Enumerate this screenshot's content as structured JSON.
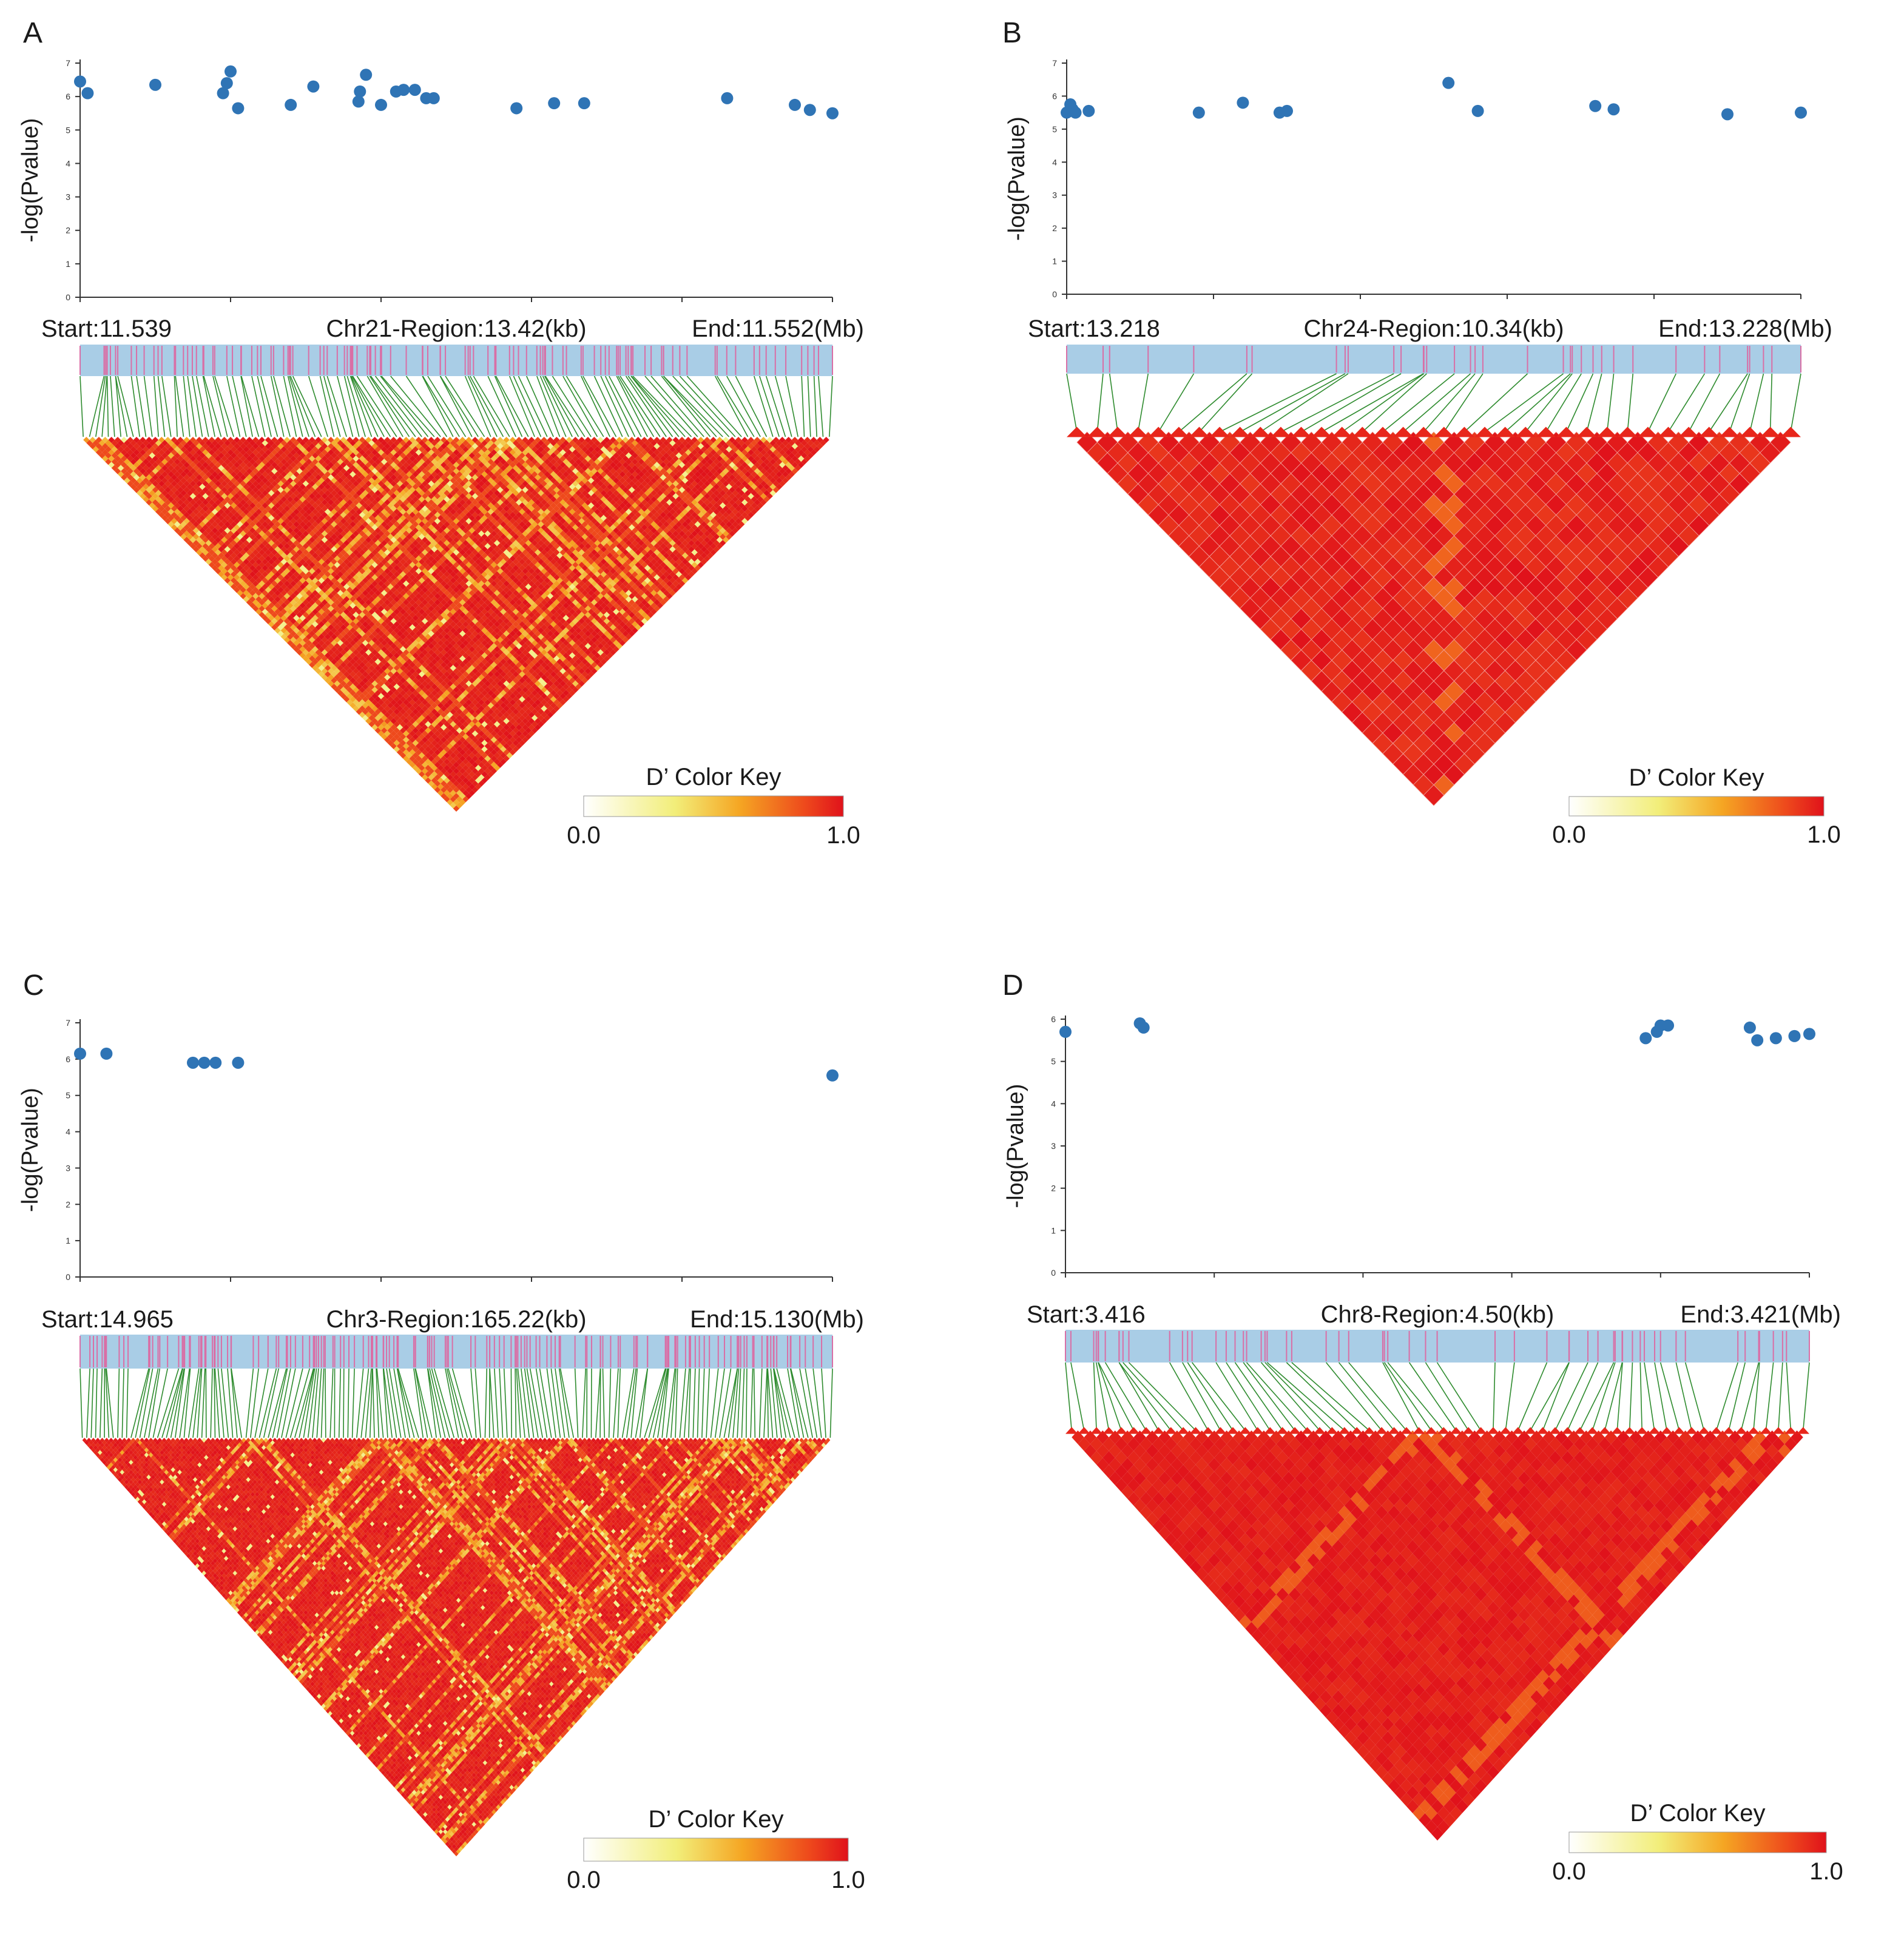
{
  "colors": {
    "dot": "#2f74b5",
    "bar": "#a9cde6",
    "snp_tick": "#d96fa6",
    "connector": "#2e8b2e",
    "ld_high": "#e8261b",
    "ld_low": "#ffffff"
  },
  "chart_data": [
    {
      "panel": "A",
      "type": "scatter",
      "ylabel": "-log(Pvalue)",
      "ylim": [
        0,
        7
      ],
      "yticks": [
        "0",
        "1",
        "2",
        "3",
        "4",
        "5",
        "6",
        "7"
      ],
      "x": [
        0.0,
        0.01,
        0.1,
        0.19,
        0.195,
        0.2,
        0.21,
        0.28,
        0.31,
        0.37,
        0.372,
        0.38,
        0.4,
        0.42,
        0.43,
        0.445,
        0.46,
        0.47,
        0.58,
        0.63,
        0.67,
        0.86,
        0.95,
        0.97,
        1.0
      ],
      "y": [
        6.45,
        6.1,
        6.35,
        6.1,
        6.4,
        6.75,
        5.65,
        5.75,
        6.3,
        5.85,
        6.15,
        6.65,
        5.75,
        6.15,
        6.2,
        6.2,
        5.95,
        5.95,
        5.65,
        5.8,
        5.8,
        5.95,
        5.75,
        5.6,
        5.5
      ],
      "start_label": "Start:11.539",
      "region_label": "Chr21-Region:13.42(kb)",
      "end_label": "End:11.552(Mb)",
      "n_snps": 120,
      "ld_pattern": "mixed_stripes",
      "ld_seed": 11,
      "key": {
        "title": "D’ Color Key",
        "min": "0.0",
        "max": "1.0"
      }
    },
    {
      "panel": "B",
      "type": "scatter",
      "ylabel": "-log(Pvalue)",
      "ylim": [
        0,
        7
      ],
      "yticks": [
        "0",
        "1",
        "2",
        "3",
        "4",
        "5",
        "6",
        "7"
      ],
      "x": [
        0.0,
        0.005,
        0.008,
        0.012,
        0.03,
        0.18,
        0.24,
        0.29,
        0.3,
        0.52,
        0.56,
        0.72,
        0.745,
        0.9,
        1.0
      ],
      "y": [
        5.5,
        5.75,
        5.6,
        5.5,
        5.55,
        5.5,
        5.8,
        5.5,
        5.55,
        6.4,
        5.55,
        5.7,
        5.6,
        5.45,
        5.5
      ],
      "start_label": "Start:13.218",
      "region_label": "Chr24-Region:10.34(kb)",
      "end_label": "End:13.228(Mb)",
      "n_snps": 36,
      "ld_pattern": "mostly_high",
      "ld_seed": 24,
      "key": {
        "title": "D’ Color Key",
        "min": "0.0",
        "max": "1.0"
      }
    },
    {
      "panel": "C",
      "type": "scatter",
      "ylabel": "-log(Pvalue)",
      "ylim": [
        0,
        7
      ],
      "yticks": [
        "0",
        "1",
        "2",
        "3",
        "4",
        "5",
        "6",
        "7"
      ],
      "x": [
        0.0,
        0.035,
        0.15,
        0.165,
        0.18,
        0.21,
        1.0
      ],
      "y": [
        6.15,
        6.15,
        5.9,
        5.9,
        5.9,
        5.9,
        5.55
      ],
      "start_label": "Start:14.965",
      "region_label": "Chr3-Region:165.22(kb)",
      "end_label": "End:15.130(Mb)",
      "n_snps": 170,
      "ld_pattern": "dense_mixed",
      "ld_seed": 3,
      "key": {
        "title": "D’ Color Key",
        "min": "0.0",
        "max": "1.0"
      }
    },
    {
      "panel": "D",
      "type": "scatter",
      "ylabel": "-log(Pvalue)",
      "ylim": [
        0,
        6
      ],
      "yticks": [
        "0",
        "1",
        "2",
        "3",
        "4",
        "5",
        "6"
      ],
      "x": [
        0.0,
        0.1,
        0.105,
        0.78,
        0.795,
        0.8,
        0.81,
        0.92,
        0.93,
        0.955,
        0.98,
        1.0
      ],
      "y": [
        5.7,
        5.9,
        5.8,
        5.55,
        5.7,
        5.85,
        5.85,
        5.8,
        5.5,
        5.55,
        5.6,
        5.65
      ],
      "start_label": "Start:3.416",
      "region_label": "Chr8-Region:4.50(kb)",
      "end_label": "End:3.421(Mb)",
      "n_snps": 60,
      "ld_pattern": "mostly_high_blocks",
      "ld_seed": 8,
      "key": {
        "title": "D’ Color Key",
        "min": "0.0",
        "max": "1.0"
      }
    }
  ]
}
